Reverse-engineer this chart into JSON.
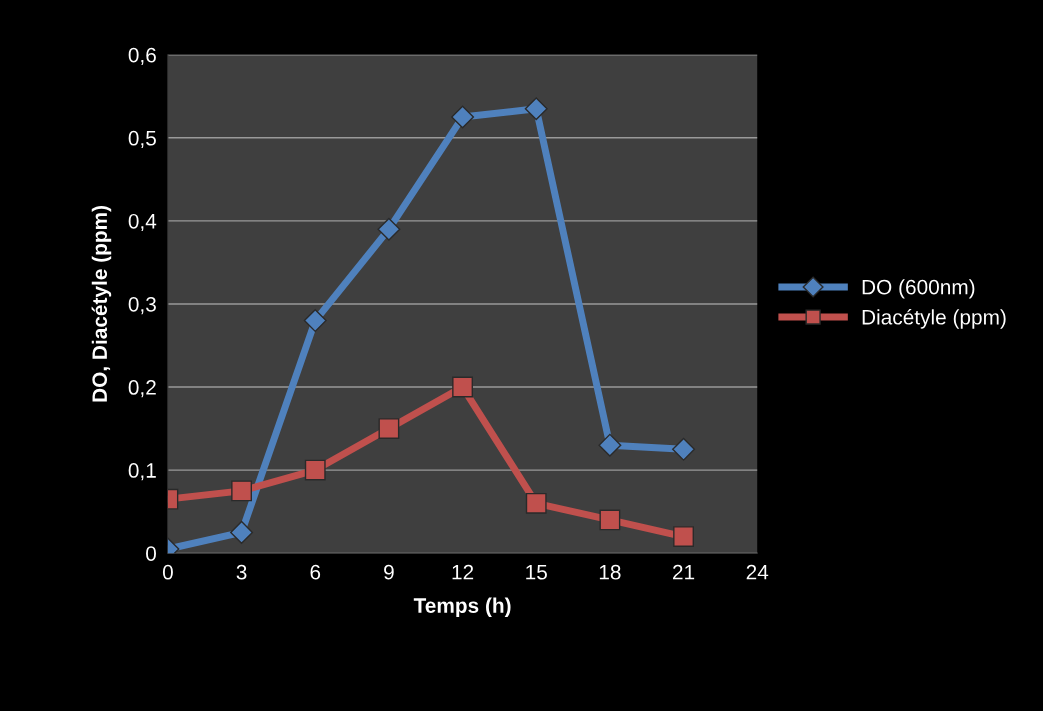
{
  "chart_data": {
    "type": "line",
    "xlabel": "Temps (h)",
    "ylabel": "DO, Diacétyle (ppm)",
    "x": [
      0,
      3,
      6,
      9,
      12,
      15,
      18,
      21
    ],
    "series": [
      {
        "name": "DO (600nm)",
        "color": "#4f81bd",
        "marker": "diamond",
        "values": [
          0.005,
          0.025,
          0.28,
          0.39,
          0.525,
          0.535,
          0.13,
          0.125
        ]
      },
      {
        "name": "Diacétyle (ppm)",
        "color": "#c0504d",
        "marker": "square",
        "values": [
          0.065,
          0.075,
          0.1,
          0.15,
          0.2,
          0.06,
          0.04,
          0.02
        ]
      }
    ],
    "xlim": [
      0,
      24
    ],
    "xticks": [
      0,
      3,
      6,
      9,
      12,
      15,
      18,
      21,
      24
    ],
    "ylim": [
      0,
      0.6
    ],
    "yticks": [
      {
        "value": 0,
        "label": "0"
      },
      {
        "value": 0.1,
        "label": "0,1"
      },
      {
        "value": 0.2,
        "label": "0,2"
      },
      {
        "value": 0.3,
        "label": "0,3"
      },
      {
        "value": 0.4,
        "label": "0,4"
      },
      {
        "value": 0.5,
        "label": "0,5"
      },
      {
        "value": 0.6,
        "label": "0,6"
      }
    ],
    "grid": "y",
    "legend": "right"
  }
}
